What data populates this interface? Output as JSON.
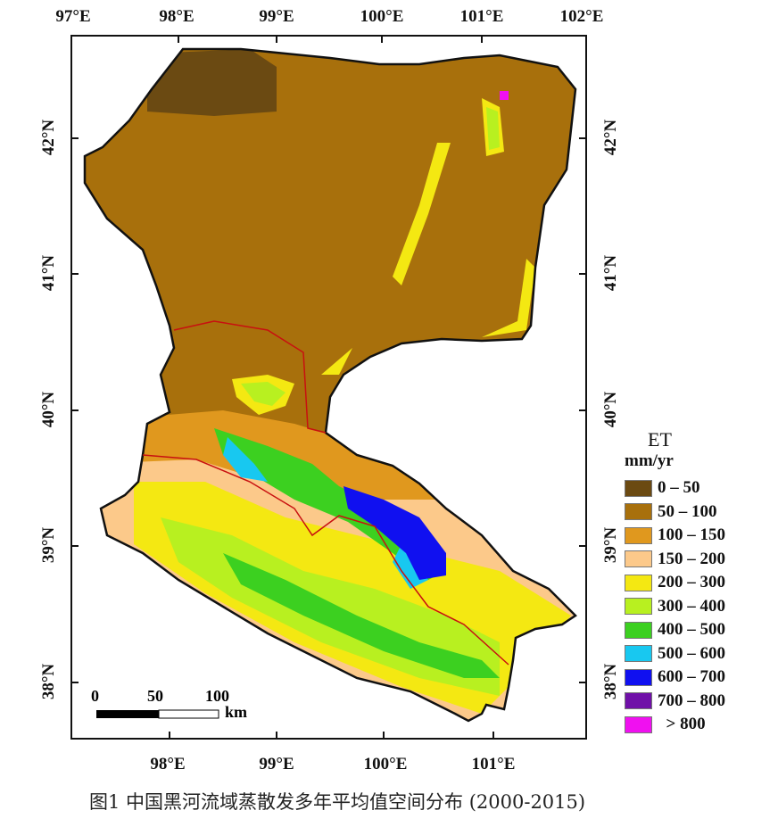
{
  "top_lon_labels": [
    "97°E",
    "98°E",
    "99°E",
    "100°E",
    "101°E",
    "102°E"
  ],
  "bottom_lon_labels": [
    "98°E",
    "99°E",
    "100°E",
    "101°E"
  ],
  "left_lat_labels": [
    "42°N",
    "41°N",
    "40°N",
    "39°N",
    "38°N"
  ],
  "right_lat_labels": [
    "42°N",
    "41°N",
    "40°N",
    "39°N",
    "38°N"
  ],
  "legend": {
    "title": "ET",
    "unit": "mm/yr",
    "items": [
      {
        "label": "0 – 50",
        "color": "#6b4a12"
      },
      {
        "label": "50 – 100",
        "color": "#a8700c"
      },
      {
        "label": "100 – 150",
        "color": "#e0981e"
      },
      {
        "label": "150 – 200",
        "color": "#fcc98a"
      },
      {
        "label": "200 – 300",
        "color": "#f4e812"
      },
      {
        "label": "300 – 400",
        "color": "#b8f020"
      },
      {
        "label": "400 – 500",
        "color": "#3cd020"
      },
      {
        "label": "500 – 600",
        "color": "#18c8f0"
      },
      {
        "label": "600 – 700",
        "color": "#1010f0"
      },
      {
        "label": "700 – 800",
        "color": "#7010a8"
      },
      {
        "label": "  > 800",
        "color": "#f010f0"
      }
    ]
  },
  "scale_bar": {
    "ticks": [
      "0",
      "50",
      "100"
    ],
    "unit": "km"
  },
  "caption": "图1 中国黑河流域蒸散发多年平均值空间分布 (2000-2015)"
}
